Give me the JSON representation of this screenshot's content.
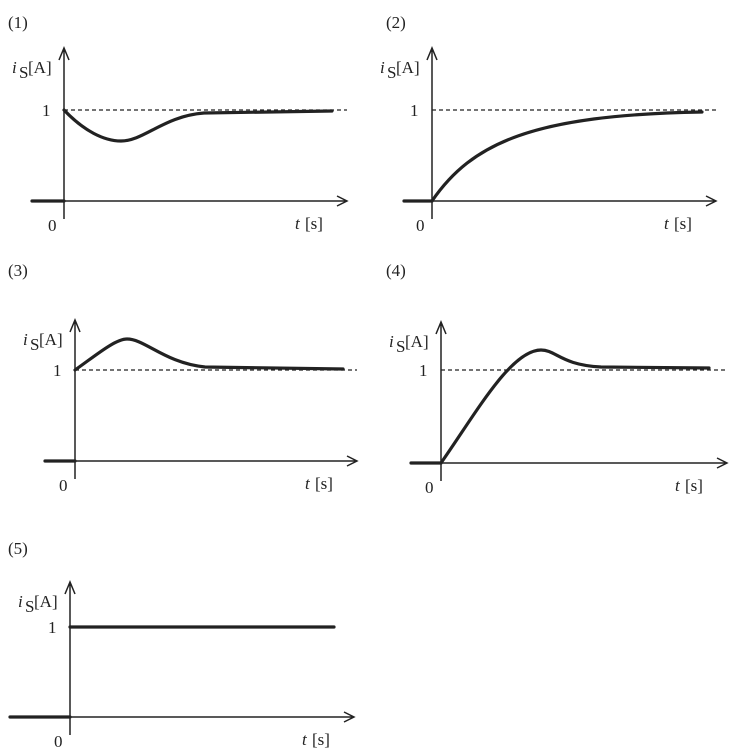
{
  "panels": [
    {
      "label": "(1)",
      "y_var": "i",
      "y_sub": "S",
      "y_unit": "[A]",
      "y_tick": "1",
      "origin": "0",
      "x_var": "t",
      "x_unit": "[s]"
    },
    {
      "label": "(2)",
      "y_var": "i",
      "y_sub": "S",
      "y_unit": "[A]",
      "y_tick": "1",
      "origin": "0",
      "x_var": "t",
      "x_unit": "[s]"
    },
    {
      "label": "(3)",
      "y_var": "i",
      "y_sub": "S",
      "y_unit": "[A]",
      "y_tick": "1",
      "origin": "0",
      "x_var": "t",
      "x_unit": "[s]"
    },
    {
      "label": "(4)",
      "y_var": "i",
      "y_sub": "S",
      "y_unit": "[A]",
      "y_tick": "1",
      "origin": "0",
      "x_var": "t",
      "x_unit": "[s]"
    },
    {
      "label": "(5)",
      "y_var": "i",
      "y_sub": "S",
      "y_unit": "[A]",
      "y_tick": "1",
      "origin": "0",
      "x_var": "t",
      "x_unit": "[s]"
    }
  ]
}
